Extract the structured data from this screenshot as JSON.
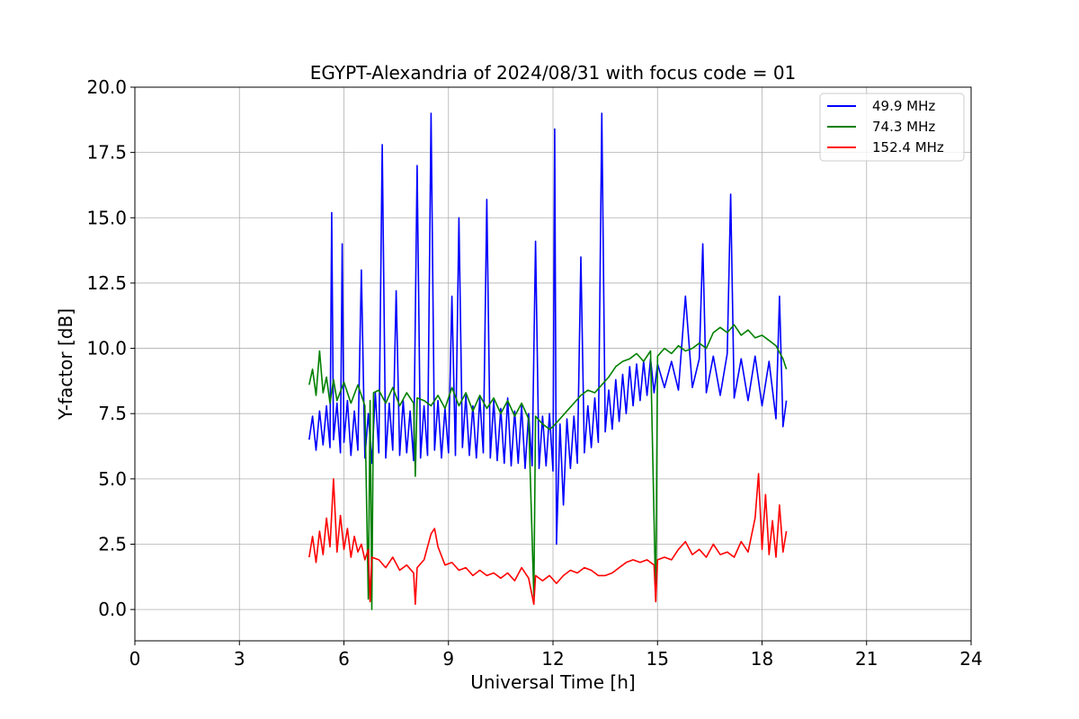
{
  "chart_data": {
    "type": "line",
    "title": "EGYPT-Alexandria of 2024/08/31 with focus code = 01",
    "xlabel": "Universal Time [h]",
    "ylabel": "Y-factor [dB]",
    "xlim": [
      0,
      24
    ],
    "ylim": [
      -1.2,
      20.0
    ],
    "xticks": [
      0,
      3,
      6,
      9,
      12,
      15,
      18,
      21,
      24
    ],
    "xtick_labels": [
      "0",
      "3",
      "6",
      "9",
      "12",
      "15",
      "18",
      "21",
      "24"
    ],
    "yticks": [
      0.0,
      2.5,
      5.0,
      7.5,
      10.0,
      12.5,
      15.0,
      17.5,
      20.0
    ],
    "ytick_labels": [
      "0.0",
      "2.5",
      "5.0",
      "7.5",
      "10.0",
      "12.5",
      "15.0",
      "17.5",
      "20.0"
    ],
    "grid": true,
    "legend_position": "top-right",
    "series": [
      {
        "name": "  49.9 MHz",
        "color": "#0000ff",
        "points": [
          [
            5.0,
            6.5
          ],
          [
            5.1,
            7.4
          ],
          [
            5.2,
            6.1
          ],
          [
            5.3,
            7.6
          ],
          [
            5.4,
            6.3
          ],
          [
            5.5,
            7.8
          ],
          [
            5.6,
            6.2
          ],
          [
            5.65,
            15.2
          ],
          [
            5.7,
            6.5
          ],
          [
            5.8,
            7.9
          ],
          [
            5.9,
            6.0
          ],
          [
            5.95,
            14.0
          ],
          [
            6.0,
            6.4
          ],
          [
            6.1,
            8.0
          ],
          [
            6.2,
            5.9
          ],
          [
            6.3,
            7.6
          ],
          [
            6.4,
            6.1
          ],
          [
            6.5,
            13.0
          ],
          [
            6.6,
            5.8
          ],
          [
            6.7,
            7.5
          ],
          [
            6.8,
            5.6
          ],
          [
            6.9,
            8.3
          ],
          [
            7.0,
            6.0
          ],
          [
            7.1,
            17.8
          ],
          [
            7.2,
            5.8
          ],
          [
            7.3,
            7.9
          ],
          [
            7.4,
            6.1
          ],
          [
            7.5,
            12.2
          ],
          [
            7.6,
            5.9
          ],
          [
            7.7,
            8.0
          ],
          [
            7.8,
            6.0
          ],
          [
            7.9,
            7.6
          ],
          [
            8.0,
            5.7
          ],
          [
            8.1,
            17.0
          ],
          [
            8.2,
            5.8
          ],
          [
            8.3,
            7.8
          ],
          [
            8.4,
            5.9
          ],
          [
            8.5,
            19.0
          ],
          [
            8.6,
            6.1
          ],
          [
            8.7,
            8.0
          ],
          [
            8.8,
            5.8
          ],
          [
            8.9,
            7.7
          ],
          [
            9.0,
            6.0
          ],
          [
            9.1,
            12.0
          ],
          [
            9.2,
            5.9
          ],
          [
            9.3,
            15.0
          ],
          [
            9.4,
            6.2
          ],
          [
            9.5,
            8.2
          ],
          [
            9.6,
            5.9
          ],
          [
            9.7,
            7.8
          ],
          [
            9.8,
            5.8
          ],
          [
            9.9,
            8.1
          ],
          [
            10.0,
            6.0
          ],
          [
            10.1,
            15.7
          ],
          [
            10.2,
            5.8
          ],
          [
            10.3,
            8.0
          ],
          [
            10.4,
            5.7
          ],
          [
            10.5,
            7.7
          ],
          [
            10.6,
            5.6
          ],
          [
            10.7,
            8.1
          ],
          [
            10.8,
            5.5
          ],
          [
            10.9,
            7.6
          ],
          [
            11.0,
            5.6
          ],
          [
            11.1,
            7.8
          ],
          [
            11.2,
            5.4
          ],
          [
            11.3,
            7.5
          ],
          [
            11.4,
            5.5
          ],
          [
            11.5,
            14.1
          ],
          [
            11.6,
            5.4
          ],
          [
            11.7,
            7.4
          ],
          [
            11.8,
            5.5
          ],
          [
            11.9,
            7.5
          ],
          [
            12.0,
            5.3
          ],
          [
            12.05,
            18.4
          ],
          [
            12.1,
            2.5
          ],
          [
            12.2,
            7.1
          ],
          [
            12.3,
            4.0
          ],
          [
            12.4,
            7.3
          ],
          [
            12.5,
            5.4
          ],
          [
            12.6,
            7.4
          ],
          [
            12.7,
            5.6
          ],
          [
            12.8,
            13.5
          ],
          [
            12.9,
            6.0
          ],
          [
            13.0,
            7.8
          ],
          [
            13.1,
            6.2
          ],
          [
            13.2,
            8.1
          ],
          [
            13.3,
            6.4
          ],
          [
            13.4,
            19.0
          ],
          [
            13.5,
            6.8
          ],
          [
            13.6,
            8.4
          ],
          [
            13.7,
            6.9
          ],
          [
            13.8,
            8.8
          ],
          [
            13.9,
            7.2
          ],
          [
            14.0,
            9.0
          ],
          [
            14.1,
            7.5
          ],
          [
            14.2,
            9.3
          ],
          [
            14.3,
            7.8
          ],
          [
            14.4,
            9.4
          ],
          [
            14.5,
            8.0
          ],
          [
            14.6,
            9.5
          ],
          [
            14.7,
            8.2
          ],
          [
            14.8,
            9.6
          ],
          [
            14.9,
            8.3
          ],
          [
            15.0,
            9.4
          ],
          [
            15.2,
            8.5
          ],
          [
            15.4,
            9.5
          ],
          [
            15.6,
            8.4
          ],
          [
            15.8,
            12.0
          ],
          [
            16.0,
            8.5
          ],
          [
            16.2,
            9.6
          ],
          [
            16.3,
            14.0
          ],
          [
            16.4,
            8.3
          ],
          [
            16.6,
            9.7
          ],
          [
            16.8,
            8.2
          ],
          [
            17.0,
            9.8
          ],
          [
            17.1,
            15.9
          ],
          [
            17.2,
            8.1
          ],
          [
            17.4,
            9.6
          ],
          [
            17.6,
            8.0
          ],
          [
            17.8,
            9.7
          ],
          [
            18.0,
            7.8
          ],
          [
            18.2,
            9.5
          ],
          [
            18.4,
            7.3
          ],
          [
            18.5,
            12.0
          ],
          [
            18.6,
            7.0
          ],
          [
            18.7,
            8.0
          ]
        ]
      },
      {
        "name": "  74.3 MHz",
        "color": "#008000",
        "points": [
          [
            5.0,
            8.6
          ],
          [
            5.1,
            9.2
          ],
          [
            5.2,
            8.2
          ],
          [
            5.3,
            9.9
          ],
          [
            5.4,
            8.3
          ],
          [
            5.5,
            8.9
          ],
          [
            5.6,
            7.9
          ],
          [
            5.7,
            8.8
          ],
          [
            5.8,
            8.0
          ],
          [
            6.0,
            8.7
          ],
          [
            6.2,
            7.9
          ],
          [
            6.4,
            8.6
          ],
          [
            6.6,
            7.8
          ],
          [
            6.7,
            0.4
          ],
          [
            6.75,
            8.0
          ],
          [
            6.8,
            0.0
          ],
          [
            6.85,
            8.3
          ],
          [
            7.0,
            8.4
          ],
          [
            7.2,
            7.9
          ],
          [
            7.4,
            8.5
          ],
          [
            7.6,
            7.8
          ],
          [
            7.8,
            8.3
          ],
          [
            8.0,
            7.9
          ],
          [
            8.05,
            5.1
          ],
          [
            8.1,
            8.1
          ],
          [
            8.3,
            8.0
          ],
          [
            8.5,
            7.8
          ],
          [
            8.7,
            8.2
          ],
          [
            8.9,
            7.7
          ],
          [
            9.1,
            8.5
          ],
          [
            9.3,
            7.8
          ],
          [
            9.5,
            8.3
          ],
          [
            9.7,
            7.6
          ],
          [
            9.9,
            8.2
          ],
          [
            10.1,
            7.7
          ],
          [
            10.3,
            8.1
          ],
          [
            10.5,
            7.5
          ],
          [
            10.7,
            8.0
          ],
          [
            10.9,
            7.4
          ],
          [
            11.1,
            7.9
          ],
          [
            11.3,
            7.3
          ],
          [
            11.45,
            0.5
          ],
          [
            11.5,
            7.4
          ],
          [
            11.7,
            7.1
          ],
          [
            11.9,
            6.9
          ],
          [
            12.0,
            7.0
          ],
          [
            12.2,
            7.3
          ],
          [
            12.4,
            7.6
          ],
          [
            12.6,
            7.9
          ],
          [
            12.8,
            8.2
          ],
          [
            13.0,
            8.4
          ],
          [
            13.2,
            8.3
          ],
          [
            13.4,
            8.6
          ],
          [
            13.6,
            8.9
          ],
          [
            13.8,
            9.3
          ],
          [
            14.0,
            9.5
          ],
          [
            14.2,
            9.6
          ],
          [
            14.4,
            9.8
          ],
          [
            14.6,
            9.5
          ],
          [
            14.8,
            9.9
          ],
          [
            14.95,
            0.3
          ],
          [
            15.0,
            9.7
          ],
          [
            15.2,
            10.0
          ],
          [
            15.4,
            9.8
          ],
          [
            15.6,
            10.1
          ],
          [
            15.8,
            9.9
          ],
          [
            16.0,
            10.0
          ],
          [
            16.2,
            10.2
          ],
          [
            16.4,
            10.0
          ],
          [
            16.6,
            10.6
          ],
          [
            16.8,
            10.8
          ],
          [
            17.0,
            10.6
          ],
          [
            17.2,
            10.9
          ],
          [
            17.4,
            10.5
          ],
          [
            17.6,
            10.7
          ],
          [
            17.8,
            10.4
          ],
          [
            18.0,
            10.5
          ],
          [
            18.2,
            10.3
          ],
          [
            18.4,
            10.1
          ],
          [
            18.6,
            9.6
          ],
          [
            18.7,
            9.2
          ]
        ]
      },
      {
        "name": "152.4 MHz",
        "color": "#ff0000",
        "points": [
          [
            5.0,
            2.0
          ],
          [
            5.1,
            2.8
          ],
          [
            5.2,
            1.8
          ],
          [
            5.3,
            3.0
          ],
          [
            5.4,
            2.1
          ],
          [
            5.5,
            3.5
          ],
          [
            5.6,
            2.4
          ],
          [
            5.7,
            5.0
          ],
          [
            5.8,
            2.2
          ],
          [
            5.9,
            3.6
          ],
          [
            6.0,
            2.3
          ],
          [
            6.1,
            3.1
          ],
          [
            6.2,
            2.0
          ],
          [
            6.3,
            2.8
          ],
          [
            6.4,
            2.2
          ],
          [
            6.5,
            2.5
          ],
          [
            6.6,
            1.9
          ],
          [
            6.7,
            2.3
          ],
          [
            6.75,
            0.3
          ],
          [
            6.8,
            2.0
          ],
          [
            7.0,
            1.9
          ],
          [
            7.2,
            1.6
          ],
          [
            7.4,
            2.0
          ],
          [
            7.6,
            1.5
          ],
          [
            7.8,
            1.7
          ],
          [
            8.0,
            1.4
          ],
          [
            8.05,
            0.2
          ],
          [
            8.1,
            1.6
          ],
          [
            8.3,
            1.9
          ],
          [
            8.5,
            2.9
          ],
          [
            8.6,
            3.1
          ],
          [
            8.7,
            2.4
          ],
          [
            8.9,
            1.7
          ],
          [
            9.1,
            1.8
          ],
          [
            9.3,
            1.5
          ],
          [
            9.5,
            1.6
          ],
          [
            9.7,
            1.3
          ],
          [
            9.9,
            1.5
          ],
          [
            10.1,
            1.3
          ],
          [
            10.3,
            1.4
          ],
          [
            10.5,
            1.2
          ],
          [
            10.7,
            1.4
          ],
          [
            10.9,
            1.1
          ],
          [
            11.1,
            1.6
          ],
          [
            11.3,
            1.2
          ],
          [
            11.45,
            0.2
          ],
          [
            11.5,
            1.3
          ],
          [
            11.7,
            1.1
          ],
          [
            11.9,
            1.3
          ],
          [
            12.1,
            1.0
          ],
          [
            12.3,
            1.3
          ],
          [
            12.5,
            1.5
          ],
          [
            12.7,
            1.4
          ],
          [
            12.9,
            1.6
          ],
          [
            13.1,
            1.5
          ],
          [
            13.3,
            1.3
          ],
          [
            13.5,
            1.3
          ],
          [
            13.7,
            1.4
          ],
          [
            13.9,
            1.6
          ],
          [
            14.1,
            1.8
          ],
          [
            14.3,
            1.9
          ],
          [
            14.5,
            1.8
          ],
          [
            14.7,
            1.9
          ],
          [
            14.9,
            1.7
          ],
          [
            14.95,
            0.3
          ],
          [
            15.0,
            1.9
          ],
          [
            15.2,
            2.0
          ],
          [
            15.4,
            1.9
          ],
          [
            15.6,
            2.3
          ],
          [
            15.8,
            2.6
          ],
          [
            16.0,
            2.1
          ],
          [
            16.2,
            2.3
          ],
          [
            16.4,
            2.0
          ],
          [
            16.6,
            2.5
          ],
          [
            16.8,
            2.1
          ],
          [
            17.0,
            2.2
          ],
          [
            17.2,
            2.0
          ],
          [
            17.4,
            2.6
          ],
          [
            17.6,
            2.2
          ],
          [
            17.8,
            3.5
          ],
          [
            17.9,
            5.2
          ],
          [
            18.0,
            2.3
          ],
          [
            18.1,
            4.4
          ],
          [
            18.2,
            2.1
          ],
          [
            18.3,
            3.4
          ],
          [
            18.4,
            2.0
          ],
          [
            18.5,
            4.0
          ],
          [
            18.6,
            2.2
          ],
          [
            18.7,
            3.0
          ]
        ]
      }
    ]
  }
}
